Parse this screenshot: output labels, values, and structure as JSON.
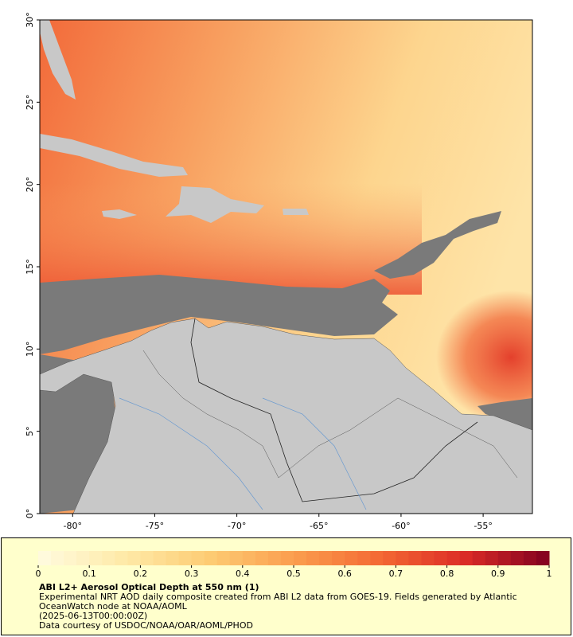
{
  "map": {
    "xlim": [
      -82,
      -52
    ],
    "ylim": [
      0,
      30
    ],
    "xticks": [
      {
        "value": -80,
        "label": "-80°"
      },
      {
        "value": -75,
        "label": "-75°"
      },
      {
        "value": -70,
        "label": "-70°"
      },
      {
        "value": -65,
        "label": "-65°"
      },
      {
        "value": -60,
        "label": "-60°"
      },
      {
        "value": -55,
        "label": "-55°"
      }
    ],
    "yticks": [
      {
        "value": 0,
        "label": "0°"
      },
      {
        "value": 5,
        "label": "5°"
      },
      {
        "value": 10,
        "label": "10°"
      },
      {
        "value": 15,
        "label": "15°"
      },
      {
        "value": 20,
        "label": "20°"
      },
      {
        "value": 25,
        "label": "25°"
      },
      {
        "value": 30,
        "label": "30°"
      }
    ]
  },
  "colorbar": {
    "lim": [
      0,
      1
    ],
    "ticks": [
      0,
      0.1,
      0.2,
      0.3,
      0.4,
      0.5,
      0.6,
      0.7,
      0.8,
      0.9,
      1
    ],
    "colors": [
      "#fffbe0",
      "#feeaa8",
      "#fdcc74",
      "#fb9e4e",
      "#f46a34",
      "#dc2c26",
      "#800020"
    ]
  },
  "legend": {
    "title": "ABI L2+ Aerosol Optical Depth at 550 nm (1)",
    "lines": [
      "Experimental NRT AOD daily composite created from ABI L2 data from GOES-19. Fields generated by Atlantic OceanWatch node at NOAA/AOML",
      "(2025-06-13T00:00:00Z)",
      "Data courtesy of USDOC/NOAA/OAR/AOML/PHOD"
    ]
  }
}
